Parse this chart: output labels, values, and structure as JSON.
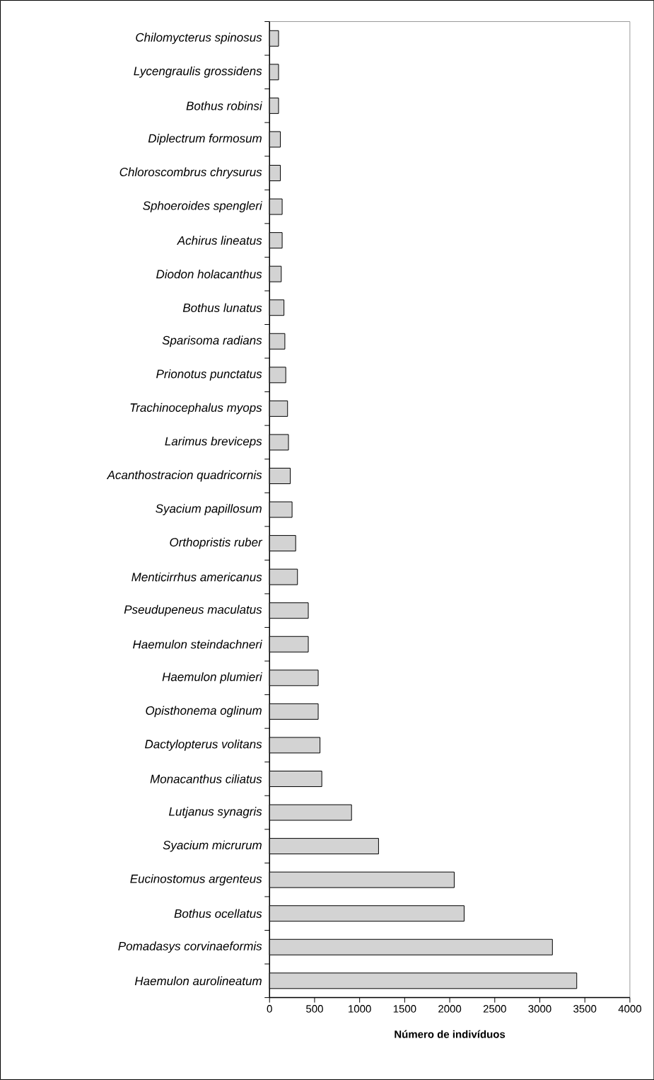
{
  "chart_data": {
    "type": "bar",
    "orientation": "horizontal",
    "xlabel": "Número de indivíduos",
    "categories": [
      "Chilomycterus spinosus",
      "Lycengraulis grossidens",
      "Bothus robinsi",
      "Diplectrum formosum",
      "Chloroscombrus chrysurus",
      "Sphoeroides spengleri",
      "Achirus lineatus",
      "Diodon holacanthus",
      "Bothus lunatus",
      "Sparisoma radians",
      "Prionotus punctatus",
      "Trachinocephalus myops",
      "Larimus breviceps",
      "Acanthostracion quadricornis",
      "Syacium papillosum",
      "Orthopristis ruber",
      "Menticirrhus americanus",
      "Pseudupeneus maculatus",
      "Haemulon steindachneri",
      "Haemulon plumieri",
      "Opisthonema oglinum",
      "Dactylopterus volitans",
      "Monacanthus ciliatus",
      "Lutjanus synagris",
      "Syacium micrurum",
      "Eucinostomus argenteus",
      "Bothus ocellatus",
      "Pomadasys corvinaeformis",
      "Haemulon aurolineatum"
    ],
    "values": [
      100,
      100,
      100,
      120,
      120,
      140,
      140,
      130,
      160,
      170,
      180,
      200,
      210,
      230,
      250,
      290,
      310,
      430,
      430,
      540,
      540,
      560,
      580,
      910,
      1210,
      2050,
      2160,
      3140,
      3410
    ],
    "color": "#d3d3d3",
    "xlim": [
      0,
      4000
    ],
    "xticks": [
      0,
      500,
      1000,
      1500,
      2000,
      2500,
      3000,
      3500,
      4000
    ]
  }
}
